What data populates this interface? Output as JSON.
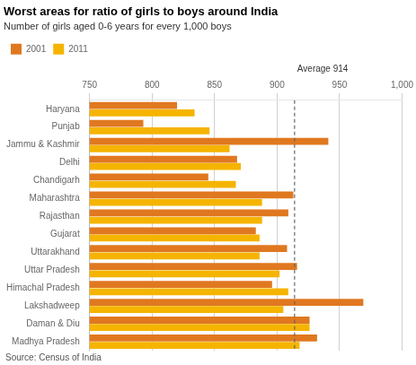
{
  "chart_data": {
    "type": "bar",
    "orientation": "horizontal",
    "title": "Worst areas for ratio of girls to boys around India",
    "subtitle": "Number of girls aged 0-6 years for every 1,000 boys",
    "source": "Source: Census of India",
    "categories": [
      "Haryana",
      "Punjab",
      "Jammu & Kashmir",
      "Delhi",
      "Chandigarh",
      "Maharashtra",
      "Rajasthan",
      "Gujarat",
      "Uttarakhand",
      "Uttar Pradesh",
      "Himachal Pradesh",
      "Lakshadweep",
      "Daman & Diu",
      "Madhya Pradesh"
    ],
    "series": [
      {
        "name": "2001",
        "color": "#E07820",
        "values": [
          820,
          793,
          941,
          868,
          845,
          913,
          909,
          883,
          908,
          916,
          896,
          969,
          926,
          932
        ]
      },
      {
        "name": "2011",
        "color": "#F5B400",
        "values": [
          834,
          846,
          862,
          871,
          867,
          888,
          888,
          886,
          886,
          902,
          909,
          905,
          926,
          918
        ]
      }
    ],
    "xlim": [
      750,
      1000
    ],
    "xticks": [
      750,
      800,
      850,
      900,
      950,
      {
        "value": 1000,
        "label": "1,000"
      }
    ],
    "grid": "x",
    "legend": "top-left",
    "annotations": [
      {
        "x": 914,
        "label": "Average 914",
        "line_style": "dashed"
      }
    ]
  }
}
